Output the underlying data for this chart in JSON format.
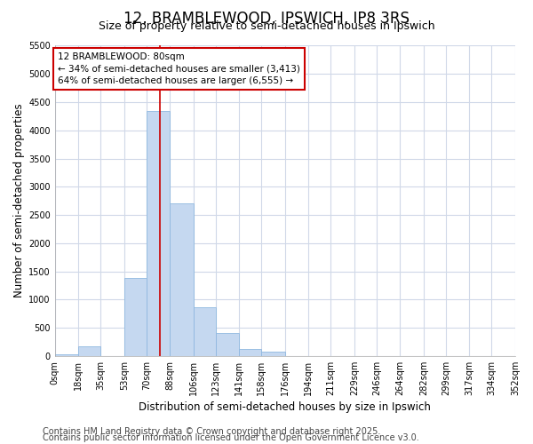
{
  "title": "12, BRAMBLEWOOD, IPSWICH, IP8 3RS",
  "subtitle": "Size of property relative to semi-detached houses in Ipswich",
  "xlabel": "Distribution of semi-detached houses by size in Ipswich",
  "ylabel": "Number of semi-detached properties",
  "bin_labels": [
    "0sqm",
    "18sqm",
    "35sqm",
    "53sqm",
    "70sqm",
    "88sqm",
    "106sqm",
    "123sqm",
    "141sqm",
    "158sqm",
    "176sqm",
    "194sqm",
    "211sqm",
    "229sqm",
    "246sqm",
    "264sqm",
    "282sqm",
    "299sqm",
    "317sqm",
    "334sqm",
    "352sqm"
  ],
  "bin_edges": [
    0,
    18,
    35,
    53,
    70,
    88,
    106,
    123,
    141,
    158,
    176,
    194,
    211,
    229,
    246,
    264,
    282,
    299,
    317,
    334,
    352
  ],
  "bar_values": [
    30,
    165,
    0,
    1380,
    4350,
    2700,
    870,
    400,
    130,
    80,
    0,
    0,
    0,
    0,
    0,
    0,
    0,
    0,
    0,
    0
  ],
  "bar_color": "#c5d8f0",
  "bar_edgecolor": "#8fb8e0",
  "grid_color": "#d0d8e8",
  "property_value": 80,
  "property_line_color": "#cc0000",
  "annotation_text": "12 BRAMBLEWOOD: 80sqm\n← 34% of semi-detached houses are smaller (3,413)\n64% of semi-detached houses are larger (6,555) →",
  "annotation_box_color": "#cc0000",
  "ylim": [
    0,
    5500
  ],
  "yticks": [
    0,
    500,
    1000,
    1500,
    2000,
    2500,
    3000,
    3500,
    4000,
    4500,
    5000,
    5500
  ],
  "footer1": "Contains HM Land Registry data © Crown copyright and database right 2025.",
  "footer2": "Contains public sector information licensed under the Open Government Licence v3.0.",
  "background_color": "#ffffff",
  "plot_bg_color": "#ffffff",
  "title_fontsize": 12,
  "subtitle_fontsize": 9,
  "label_fontsize": 8.5,
  "tick_fontsize": 7,
  "annotation_fontsize": 7.5,
  "footer_fontsize": 7
}
